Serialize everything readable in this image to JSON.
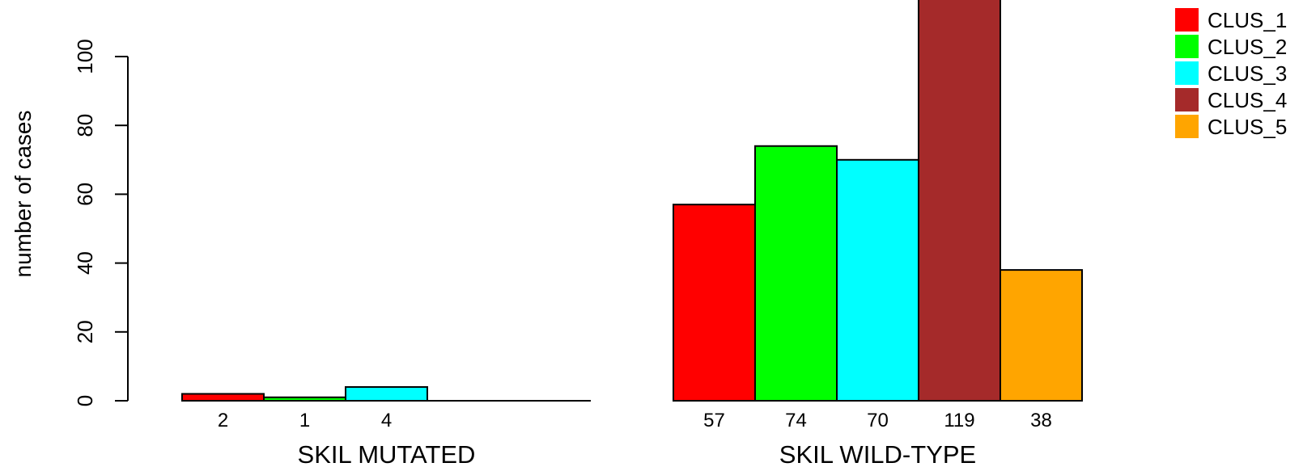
{
  "chart_data": {
    "type": "bar",
    "ylabel": "number of cases",
    "ylim": [
      0,
      119
    ],
    "yticks": [
      0,
      20,
      40,
      60,
      80,
      100
    ],
    "groups": [
      {
        "label": "SKIL MUTATED",
        "values": [
          2,
          1,
          4,
          0,
          0
        ],
        "value_labels": [
          "2",
          "1",
          "4",
          "",
          ""
        ]
      },
      {
        "label": "SKIL WILD-TYPE",
        "values": [
          57,
          74,
          70,
          119,
          38
        ],
        "value_labels": [
          "57",
          "74",
          "70",
          "119",
          "38"
        ]
      }
    ],
    "series": [
      {
        "name": "CLUS_1",
        "color": "#ff0000"
      },
      {
        "name": "CLUS_2",
        "color": "#00ff00"
      },
      {
        "name": "CLUS_3",
        "color": "#00ffff"
      },
      {
        "name": "CLUS_4",
        "color": "#a52a2a"
      },
      {
        "name": "CLUS_5",
        "color": "#ffa500"
      }
    ],
    "legend": {
      "position": "top-right"
    },
    "grid": false
  }
}
